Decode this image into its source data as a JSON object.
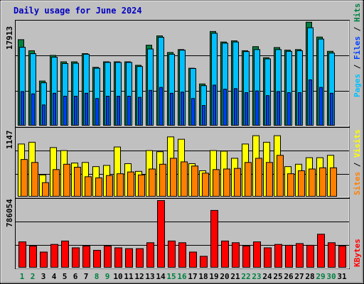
{
  "chart_data": {
    "type": "bar",
    "title": "Daily usage for June 2024",
    "categories": [
      "1",
      "2",
      "3",
      "4",
      "5",
      "6",
      "7",
      "8",
      "9",
      "10",
      "11",
      "12",
      "13",
      "14",
      "15",
      "16",
      "17",
      "18",
      "19",
      "20",
      "21",
      "22",
      "23",
      "24",
      "25",
      "26",
      "27",
      "28",
      "29",
      "30",
      "31"
    ],
    "weekend_days": [
      "1",
      "2",
      "8",
      "9",
      "15",
      "16",
      "22",
      "23",
      "29",
      "30"
    ],
    "panels": [
      {
        "id": "hits",
        "ymax_label": "17913",
        "ymax": 17913,
        "legend": [
          "Pages",
          "Files",
          "Hits"
        ],
        "series": [
          {
            "name": "Hits",
            "color": "#008040",
            "values": [
              14700,
              12800,
              7600,
              12000,
              10900,
              10900,
              12300,
              9950,
              10900,
              10900,
              10900,
              10300,
              13750,
              15350,
              12500,
              13000,
              9800,
              7100,
              16100,
              14300,
              14500,
              12800,
              13500,
              11600,
              13350,
              12900,
              13000,
              17700,
              15150,
              12700,
              null
            ]
          },
          {
            "name": "Files",
            "color": "#00c0ff",
            "values": [
              13400,
              12300,
              7300,
              11700,
              10600,
              10650,
              12200,
              9800,
              10800,
              10800,
              10800,
              10100,
              13100,
              15100,
              12200,
              12900,
              9750,
              6800,
              15800,
              14100,
              14300,
              12650,
              13000,
              11400,
              13000,
              12700,
              12800,
              16750,
              14800,
              12400,
              null
            ]
          },
          {
            "name": "Pages",
            "color": "#0040ff",
            "values": [
              5800,
              5400,
              3500,
              5500,
              5000,
              5000,
              5500,
              4600,
              5000,
              5000,
              5000,
              4800,
              6000,
              6500,
              5500,
              5700,
              4600,
              3400,
              6900,
              6200,
              6300,
              5600,
              5900,
              5100,
              5800,
              5600,
              5600,
              7800,
              6500,
              5500,
              null
            ]
          }
        ]
      },
      {
        "id": "visits",
        "ymax_label": "1147",
        "ymax": 1147,
        "legend": [
          "Sites",
          "Visits"
        ],
        "series": [
          {
            "name": "Visits",
            "color": "#ffff00",
            "values": [
              880,
              910,
              360,
              820,
              770,
              560,
              570,
              500,
              520,
              830,
              550,
              420,
              770,
              750,
              1000,
              960,
              550,
              430,
              770,
              760,
              640,
              880,
              1020,
              910,
              1020,
              500,
              540,
              650,
              650,
              690,
              null
            ]
          },
          {
            "name": "Sites",
            "color": "#ff8000",
            "values": [
              620,
              570,
              230,
              450,
              540,
              490,
              330,
              310,
              350,
              380,
              410,
              360,
              460,
              540,
              640,
              580,
              510,
              390,
              450,
              460,
              470,
              570,
              640,
              570,
              690,
              380,
              430,
              460,
              480,
              480,
              null
            ]
          }
        ]
      },
      {
        "id": "kbytes",
        "ymax_label": "786054",
        "ymax": 786054,
        "legend": [
          "KBytes"
        ],
        "series": [
          {
            "name": "KBytes",
            "color": "#ff0000",
            "values": [
              300000,
              250000,
              180000,
              270000,
              310000,
              230000,
              250000,
              200000,
              250000,
              230000,
              220000,
              220000,
              290000,
              786054,
              310000,
              290000,
              180000,
              130000,
              670000,
              310000,
              290000,
              250000,
              300000,
              230000,
              270000,
              260000,
              280000,
              260000,
              390000,
              290000,
              250000
            ]
          }
        ]
      }
    ]
  }
}
